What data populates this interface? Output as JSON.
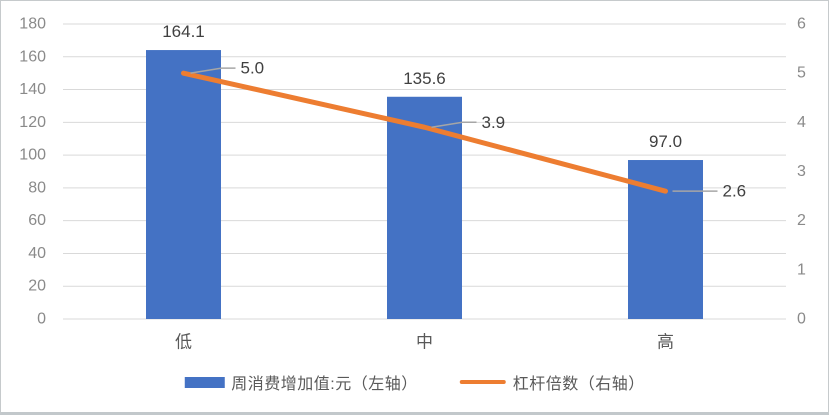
{
  "chart_data": {
    "type": "combo",
    "categories": [
      "低",
      "中",
      "高"
    ],
    "series": [
      {
        "name": "周消费增加值:元（左轴）",
        "chart_type": "bar",
        "axis": "left",
        "color": "#4472C4",
        "values": [
          164.1,
          135.6,
          97.0
        ],
        "data_labels": [
          "164.1",
          "135.6",
          "97.0"
        ]
      },
      {
        "name": "杠杆倍数（右轴）",
        "chart_type": "line",
        "axis": "right",
        "color": "#ED7D31",
        "values": [
          5.0,
          3.9,
          2.6
        ],
        "data_labels": [
          "5.0",
          "3.9",
          "2.6"
        ]
      }
    ],
    "axes": {
      "left": {
        "min": 0,
        "max": 180,
        "step": 20,
        "ticks": [
          "0",
          "20",
          "40",
          "60",
          "80",
          "100",
          "120",
          "140",
          "160",
          "180"
        ]
      },
      "right": {
        "min": 0,
        "max": 6,
        "step": 1,
        "ticks": [
          "0",
          "1",
          "2",
          "3",
          "4",
          "5",
          "6"
        ]
      }
    },
    "grid": true,
    "legend_position": "bottom",
    "title": "",
    "styles": {
      "background": "#FFFFFF",
      "grid_color": "#D9D9D9",
      "axis_text_color": "#8A8A8A",
      "data_label_color": "#404040",
      "category_text_color": "#595959",
      "leader_line_color": "#A6A6A6",
      "border_color": "#C6CACC"
    }
  }
}
